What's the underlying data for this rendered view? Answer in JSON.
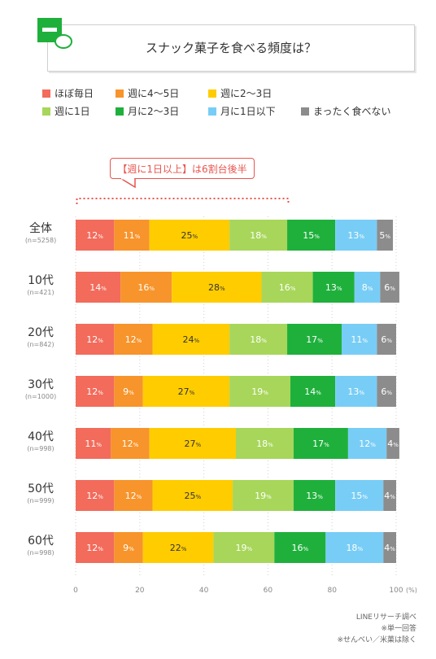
{
  "title": "スナック菓子を食べる頻度は？",
  "legend": [
    {
      "label": "ほぼ毎日",
      "color": "#f26b5b"
    },
    {
      "label": "週に4～5日",
      "color": "#f7942b"
    },
    {
      "label": "週に2～3日",
      "color": "#ffcc00"
    },
    {
      "label": "週に1日",
      "color": "#a7d65a"
    },
    {
      "label": "月に2～3日",
      "color": "#1fb03c"
    },
    {
      "label": "月に1日以下",
      "color": "#78cdf6"
    },
    {
      "label": "まったく食べない",
      "color": "#8c8c8c"
    }
  ],
  "callout": "【週に1日以上】は6割台後半",
  "chart_data": {
    "type": "bar",
    "orientation": "horizontal",
    "stacked": true,
    "categories": [
      "全体",
      "10代",
      "20代",
      "30代",
      "40代",
      "50代",
      "60代"
    ],
    "sample_sizes": [
      "(n=5258)",
      "(n=421)",
      "(n=842)",
      "(n=1000)",
      "(n=998)",
      "(n=999)",
      "(n=998)"
    ],
    "series": [
      {
        "name": "ほぼ毎日",
        "values": [
          12,
          14,
          12,
          12,
          11,
          12,
          12
        ]
      },
      {
        "name": "週に4～5日",
        "values": [
          11,
          16,
          12,
          9,
          12,
          12,
          9
        ]
      },
      {
        "name": "週に2～3日",
        "values": [
          25,
          28,
          24,
          27,
          27,
          25,
          22
        ]
      },
      {
        "name": "週に1日",
        "values": [
          18,
          16,
          18,
          19,
          18,
          19,
          19
        ]
      },
      {
        "name": "月に2～3日",
        "values": [
          15,
          13,
          17,
          14,
          17,
          13,
          16
        ]
      },
      {
        "name": "月に1日以下",
        "values": [
          13,
          8,
          11,
          13,
          12,
          15,
          18
        ]
      },
      {
        "name": "まったく食べない",
        "values": [
          5,
          6,
          6,
          6,
          4,
          4,
          4
        ]
      }
    ],
    "value_suffix": "%",
    "xlim": [
      0,
      100
    ],
    "xticks": [
      0,
      20,
      40,
      60,
      80,
      100
    ],
    "xunit": "(%)"
  },
  "source": {
    "line1": "LINEリサーチ調べ",
    "line2": "※単一回答",
    "line3": "※せんべい／米菓は除く"
  }
}
